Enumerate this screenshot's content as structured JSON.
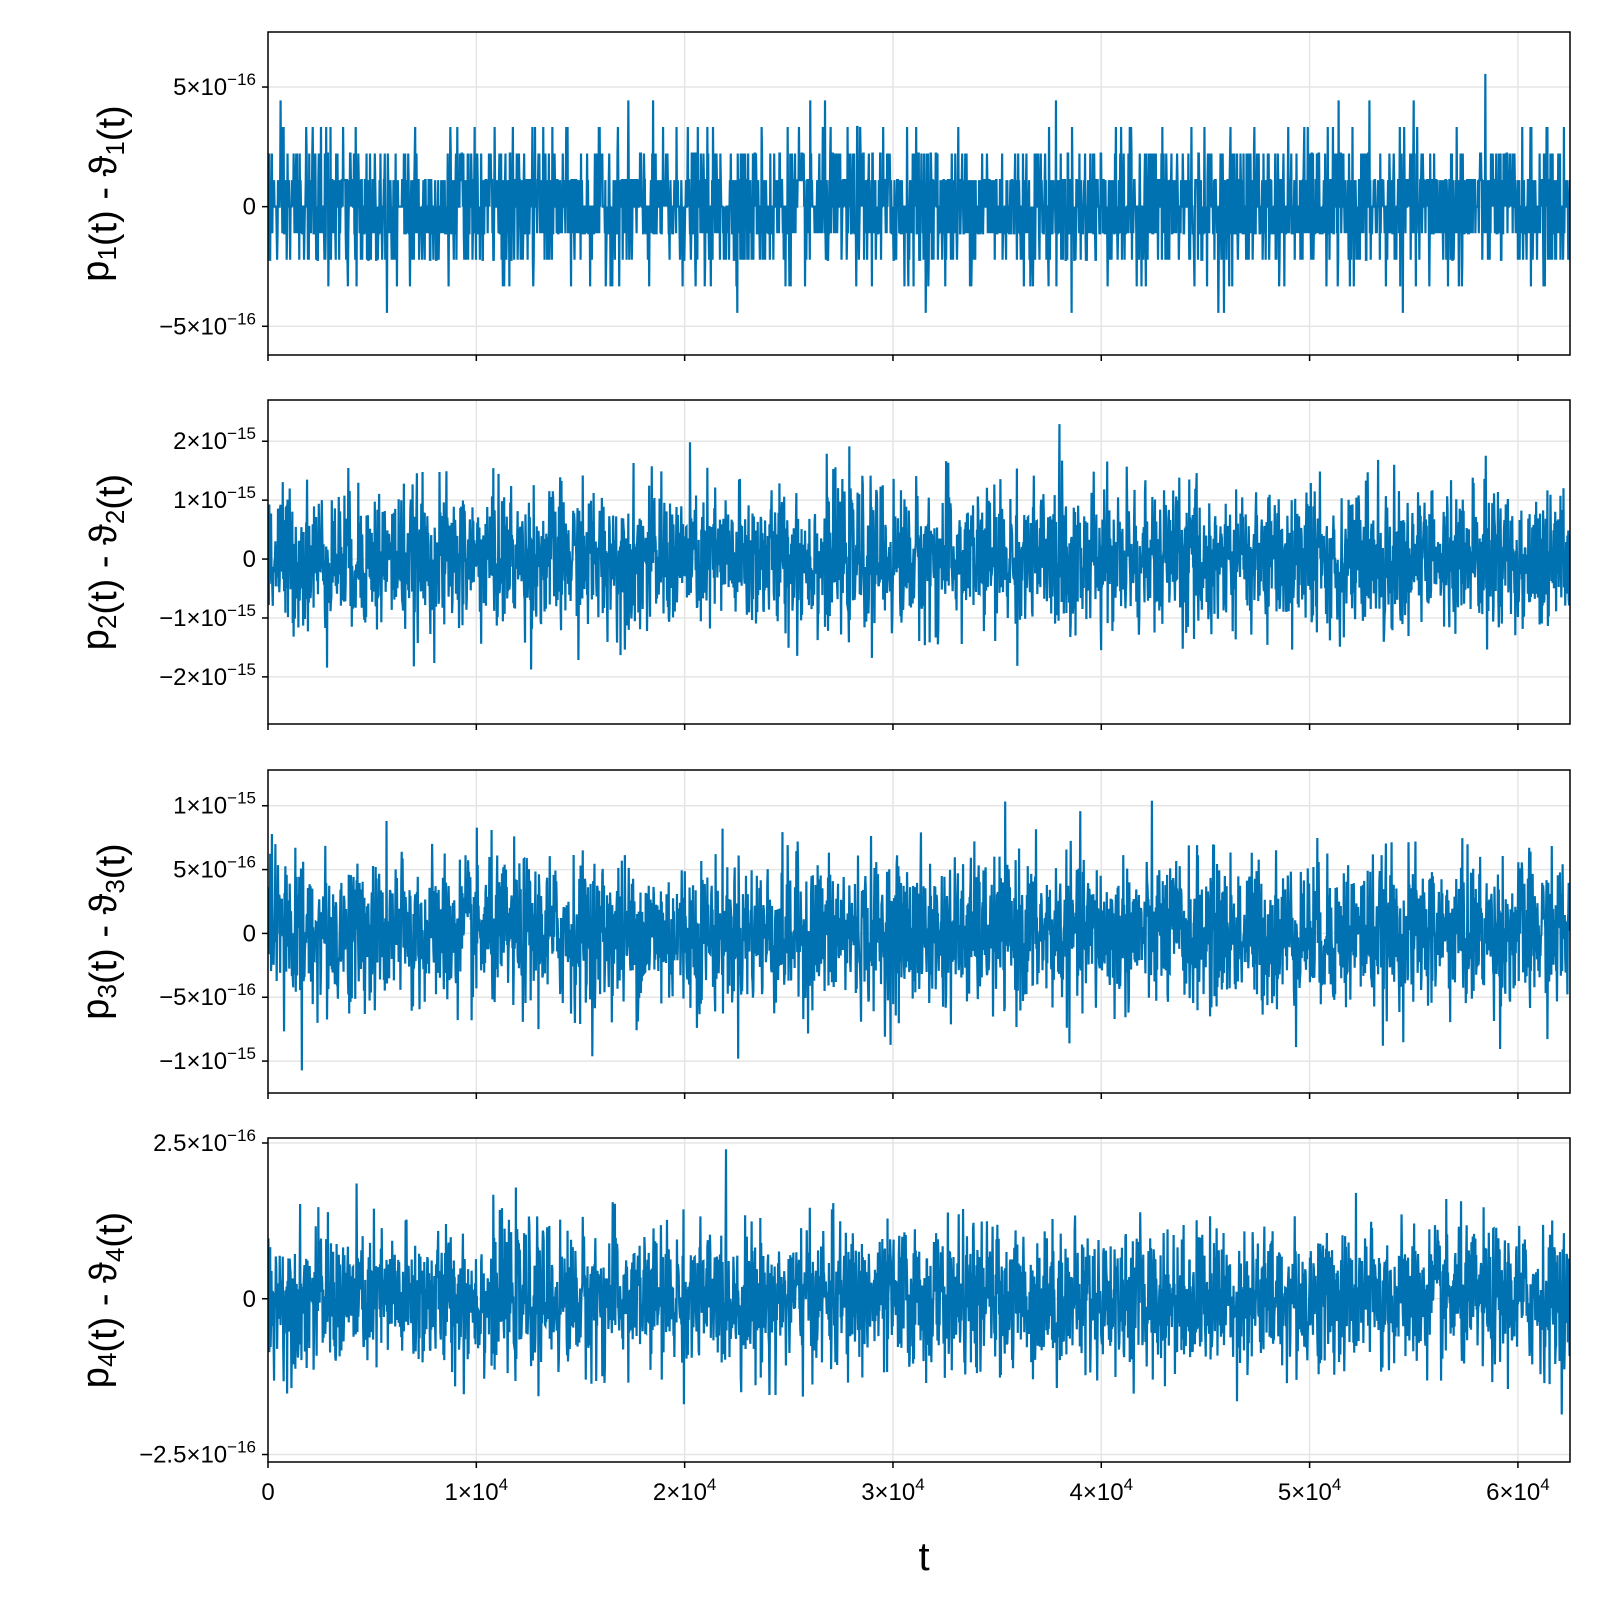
{
  "chart_data": {
    "type": "line",
    "xlabel": "t",
    "xlim": [
      0,
      62500
    ],
    "x_ticks": [
      {
        "value": 0,
        "mant": "0",
        "exp": ""
      },
      {
        "value": 10000,
        "mant": "1×10",
        "exp": "4"
      },
      {
        "value": 20000,
        "mant": "2×10",
        "exp": "4"
      },
      {
        "value": 30000,
        "mant": "3×10",
        "exp": "4"
      },
      {
        "value": 40000,
        "mant": "4×10",
        "exp": "4"
      },
      {
        "value": 50000,
        "mant": "5×10",
        "exp": "4"
      },
      {
        "value": 60000,
        "mant": "6×10",
        "exp": "4"
      }
    ],
    "line_color": "#0072b2",
    "grid": true,
    "panels": [
      {
        "ylabel_pre": "p",
        "ylabel_sub": "1",
        "ylabel_mid": "(t) - ϑ",
        "ylabel_sub2": "1",
        "ylabel_post": "(t)",
        "ylim": [
          -6.2e-16,
          7.3e-16
        ],
        "noise": {
          "mode": "quantized",
          "step": 1.11e-16,
          "sigma": 1.4e-16,
          "max": 6.7e-16,
          "min": -5.6e-16
        },
        "y_ticks": [
          {
            "value": 5e-16,
            "mant": "5×10",
            "exp": "−16"
          },
          {
            "value": 0,
            "mant": "0",
            "exp": ""
          },
          {
            "value": -5e-16,
            "mant": "−5×10",
            "exp": "−16"
          }
        ]
      },
      {
        "ylabel_pre": "p",
        "ylabel_sub": "2",
        "ylabel_mid": "(t) - ϑ",
        "ylabel_sub2": "2",
        "ylabel_post": "(t)",
        "ylim": [
          -2.8e-15,
          2.7e-15
        ],
        "noise": {
          "mode": "gauss",
          "sigma": 6e-16,
          "max": 2.45e-15,
          "min": -2.6e-15
        },
        "y_ticks": [
          {
            "value": 2e-15,
            "mant": "2×10",
            "exp": "−15"
          },
          {
            "value": 1e-15,
            "mant": "1×10",
            "exp": "−15"
          },
          {
            "value": 0,
            "mant": "0",
            "exp": ""
          },
          {
            "value": -1e-15,
            "mant": "−1×10",
            "exp": "−15"
          },
          {
            "value": -2e-15,
            "mant": "−2×10",
            "exp": "−15"
          }
        ]
      },
      {
        "ylabel_pre": "p",
        "ylabel_sub": "3",
        "ylabel_mid": "(t) - ϑ",
        "ylabel_sub2": "3",
        "ylabel_post": "(t)",
        "ylim": [
          -1.25e-15,
          1.28e-15
        ],
        "noise": {
          "mode": "gauss",
          "sigma": 2.9e-16,
          "max": 1.17e-15,
          "min": -1.15e-15
        },
        "y_ticks": [
          {
            "value": 1e-15,
            "mant": "1×10",
            "exp": "−15"
          },
          {
            "value": 5e-16,
            "mant": "5×10",
            "exp": "−16"
          },
          {
            "value": 0,
            "mant": "0",
            "exp": ""
          },
          {
            "value": -5e-16,
            "mant": "−5×10",
            "exp": "−16"
          },
          {
            "value": -1e-15,
            "mant": "−1×10",
            "exp": "−15"
          }
        ]
      },
      {
        "ylabel_pre": "p",
        "ylabel_sub": "4",
        "ylabel_mid": "(t) - ϑ",
        "ylabel_sub2": "4",
        "ylabel_post": "(t)",
        "ylim": [
          -2.62e-16,
          2.58e-16
        ],
        "noise": {
          "mode": "gauss",
          "sigma": 5.6e-17,
          "max": 2.4e-16,
          "min": -2.4e-16
        },
        "y_ticks": [
          {
            "value": 2.5e-16,
            "mant": "2.5×10",
            "exp": "−16"
          },
          {
            "value": 0,
            "mant": "0",
            "exp": ""
          },
          {
            "value": -2.5e-16,
            "mant": "−2.5×10",
            "exp": "−16"
          }
        ]
      }
    ]
  }
}
